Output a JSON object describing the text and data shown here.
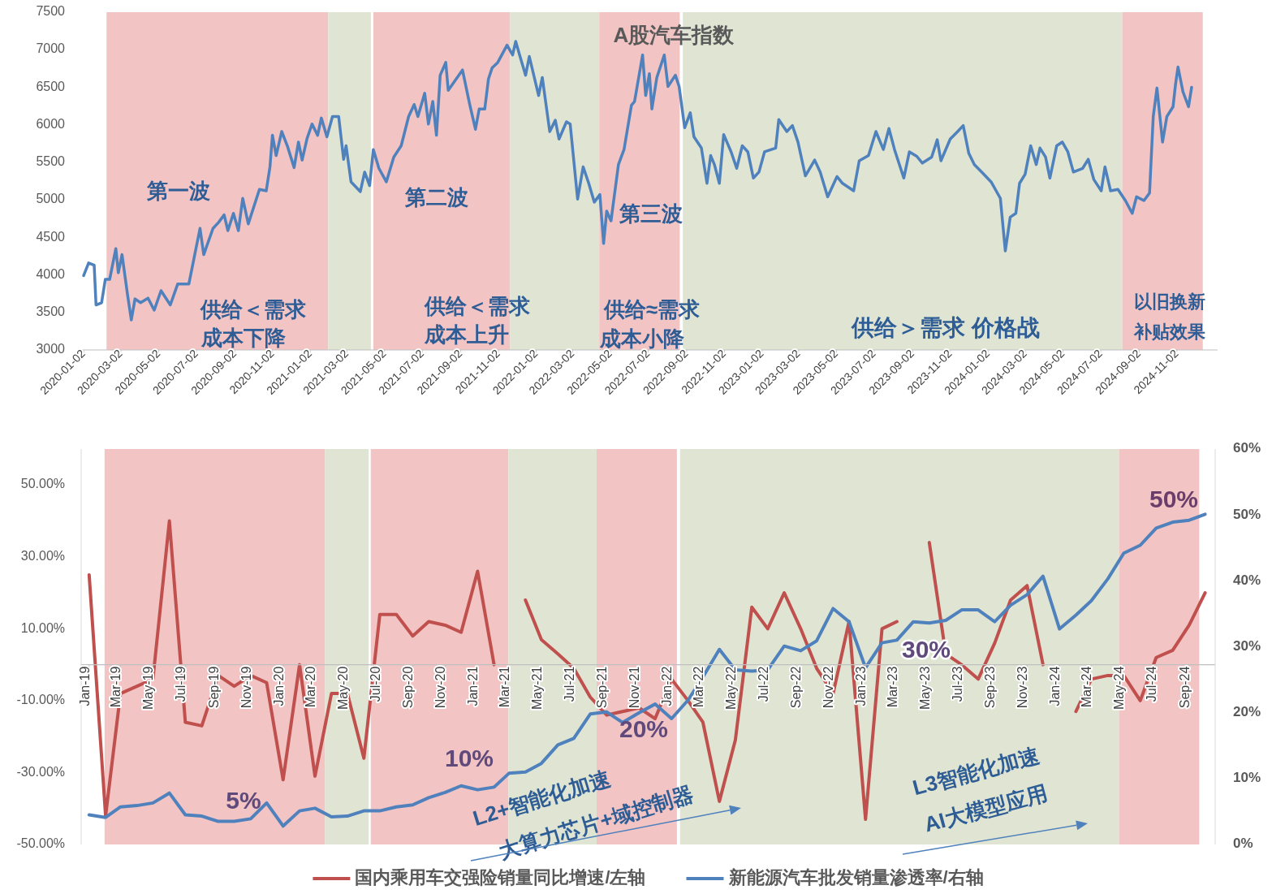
{
  "chart_data": [
    {
      "type": "line",
      "title": "A股汽车指数",
      "x": [
        "2020-01-02",
        "2020-01-10",
        "2020-01-19",
        "2020-01-22",
        "2020-01-31",
        "2020-02-06",
        "2020-02-13",
        "2020-02-23",
        "2020-02-27",
        "2020-03-04",
        "2020-03-13",
        "2020-03-19",
        "2020-03-25",
        "2020-04-03",
        "2020-04-15",
        "2020-04-25",
        "2020-05-06",
        "2020-05-21",
        "2020-06-02",
        "2020-06-20",
        "2020-06-29",
        "2020-07-08",
        "2020-07-14",
        "2020-07-29",
        "2020-08-07",
        "2020-08-16",
        "2020-08-22",
        "2020-08-31",
        "2020-09-08",
        "2020-09-15",
        "2020-09-24",
        "2020-10-12",
        "2020-10-23",
        "2020-10-29",
        "2020-11-02",
        "2020-11-08",
        "2020-11-17",
        "2020-11-26",
        "2020-12-07",
        "2020-12-14",
        "2020-12-20",
        "2020-12-28",
        "2021-01-05",
        "2021-01-14",
        "2021-01-20",
        "2021-01-29",
        "2021-02-07",
        "2021-02-17",
        "2021-02-25",
        "2021-03-01",
        "2021-03-09",
        "2021-03-24",
        "2021-03-31",
        "2021-04-08",
        "2021-04-14",
        "2021-04-23",
        "2021-05-05",
        "2021-05-17",
        "2021-05-29",
        "2021-06-10",
        "2021-06-19",
        "2021-06-25",
        "2021-07-06",
        "2021-07-12",
        "2021-07-19",
        "2021-07-25",
        "2021-07-31",
        "2021-08-09",
        "2021-08-13",
        "2021-09-05",
        "2021-09-17",
        "2021-09-26",
        "2021-10-02",
        "2021-10-11",
        "2021-10-17",
        "2021-10-23",
        "2021-11-01",
        "2021-11-16",
        "2021-11-25",
        "2021-11-30",
        "2021-12-07",
        "2021-12-16",
        "2021-12-22",
        "2022-01-06",
        "2022-01-12",
        "2022-01-24",
        "2022-02-02",
        "2022-02-08",
        "2022-02-20",
        "2022-02-26",
        "2022-03-10",
        "2022-03-19",
        "2022-03-28",
        "2022-04-06",
        "2022-04-15",
        "2022-04-21",
        "2022-04-26",
        "2022-05-03",
        "2022-05-15",
        "2022-05-24",
        "2022-06-05",
        "2022-06-10",
        "2022-06-23",
        "2022-06-28",
        "2022-07-04",
        "2022-07-08",
        "2022-07-16",
        "2022-07-28",
        "2022-08-03",
        "2022-08-15",
        "2022-08-21",
        "2022-08-30",
        "2022-09-08",
        "2022-09-14",
        "2022-09-26",
        "2022-10-05",
        "2022-10-11",
        "2022-10-17",
        "2022-10-25",
        "2022-11-01",
        "2022-11-13",
        "2022-11-22",
        "2022-12-01",
        "2022-12-10",
        "2022-12-19",
        "2022-12-28",
        "2023-01-06",
        "2023-01-24",
        "2023-01-29",
        "2023-02-11",
        "2023-02-20",
        "2023-03-01",
        "2023-03-13",
        "2023-03-28",
        "2023-04-06",
        "2023-04-18",
        "2023-05-03",
        "2023-05-12",
        "2023-05-30",
        "2023-06-08",
        "2023-06-23",
        "2023-07-05",
        "2023-07-17",
        "2023-07-26",
        "2023-08-04",
        "2023-08-19",
        "2023-08-28",
        "2023-09-09",
        "2023-09-18",
        "2023-10-03",
        "2023-10-12",
        "2023-10-18",
        "2023-11-02",
        "2023-11-14",
        "2023-11-23",
        "2023-12-02",
        "2023-12-11",
        "2023-12-23",
        "2024-01-07",
        "2024-01-22",
        "2024-01-30",
        "2024-02-07",
        "2024-02-16",
        "2024-02-22",
        "2024-03-02",
        "2024-03-11",
        "2024-03-20",
        "2024-03-26",
        "2024-04-04",
        "2024-04-11",
        "2024-04-22",
        "2024-05-01",
        "2024-05-10",
        "2024-05-19",
        "2024-06-03",
        "2024-06-12",
        "2024-06-21",
        "2024-07-03",
        "2024-07-09",
        "2024-07-18",
        "2024-07-30",
        "2024-08-11",
        "2024-08-22",
        "2024-08-29",
        "2024-09-10",
        "2024-09-19",
        "2024-09-25",
        "2024-10-01",
        "2024-10-10",
        "2024-10-17",
        "2024-10-27",
        "2024-10-31",
        "2024-11-04",
        "2024-11-12",
        "2024-11-21",
        "2024-11-26"
      ],
      "series": [
        {
          "color": "#4f81bd",
          "values": [
            3990,
            4160,
            4130,
            3600,
            3630,
            3940,
            3940,
            4350,
            4030,
            4270,
            3730,
            3400,
            3680,
            3630,
            3690,
            3530,
            3790,
            3600,
            3880,
            3880,
            4250,
            4620,
            4270,
            4620,
            4700,
            4800,
            4590,
            4820,
            4590,
            5020,
            4680,
            5140,
            5120,
            5440,
            5860,
            5590,
            5910,
            5720,
            5430,
            5770,
            5530,
            5820,
            6010,
            5860,
            6090,
            5840,
            6110,
            6110,
            5540,
            5720,
            5240,
            5110,
            5370,
            5190,
            5670,
            5420,
            5240,
            5570,
            5720,
            6110,
            6270,
            6110,
            6420,
            6010,
            6310,
            5860,
            6660,
            6830,
            6460,
            6730,
            6260,
            5940,
            6210,
            6210,
            6610,
            6760,
            6830,
            7060,
            6930,
            7110,
            6910,
            6660,
            6910,
            6390,
            6630,
            5910,
            6060,
            5810,
            6040,
            6010,
            5010,
            5440,
            5220,
            4970,
            5070,
            4420,
            4850,
            4720,
            5470,
            5670,
            6260,
            6310,
            6930,
            6390,
            6680,
            6210,
            6630,
            6930,
            6510,
            6660,
            6510,
            5960,
            6160,
            5840,
            5690,
            5220,
            5590,
            5470,
            5220,
            5870,
            5640,
            5420,
            5720,
            5640,
            5290,
            5370,
            5640,
            5690,
            6070,
            5910,
            5990,
            5770,
            5320,
            5530,
            5370,
            5040,
            5310,
            5220,
            5120,
            5520,
            5590,
            5910,
            5670,
            5950,
            5670,
            5290,
            5640,
            5580,
            5490,
            5570,
            5800,
            5520,
            5810,
            5910,
            5990,
            5620,
            5470,
            5370,
            5240,
            5020,
            4320,
            4770,
            4820,
            5220,
            5340,
            5720,
            5470,
            5690,
            5570,
            5290,
            5720,
            5770,
            5640,
            5370,
            5420,
            5540,
            5270,
            5120,
            5440,
            5120,
            5140,
            4990,
            4820,
            5040,
            4990,
            5090,
            6110,
            6490,
            5770,
            6110,
            6240,
            6540,
            6770,
            6440,
            6240,
            6500
          ]
        }
      ],
      "xlim": [
        "2019-12-29",
        "2025-01-07"
      ],
      "xticks": [
        "2020-01-02",
        "2020-03-02",
        "2020-05-02",
        "2020-07-02",
        "2020-09-02",
        "2020-11-02",
        "2021-01-02",
        "2021-03-02",
        "2021-05-02",
        "2021-07-02",
        "2021-09-02",
        "2021-11-02",
        "2022-01-02",
        "2022-03-02",
        "2022-05-02",
        "2022-07-02",
        "2022-09-02",
        "2022-11-02",
        "2023-01-02",
        "2023-03-02",
        "2023-05-02",
        "2023-07-02",
        "2023-09-02",
        "2023-11-02",
        "2024-01-02",
        "2024-03-02",
        "2024-05-02",
        "2024-07-02",
        "2024-09-02",
        "2024-11-02"
      ],
      "ylim": [
        3000,
        7500
      ],
      "yticks": [
        3000,
        3500,
        4000,
        4500,
        5000,
        5500,
        6000,
        6500,
        7000,
        7500
      ],
      "bands": [
        {
          "axis": "x",
          "from": "2020-02-08",
          "to": "2021-01-31",
          "color": "#f2c4c4"
        },
        {
          "axis": "x",
          "from": "2021-01-31",
          "to": "2021-04-10",
          "color": "#e0e5d3"
        },
        {
          "axis": "x",
          "from": "2021-04-14",
          "to": "2021-11-21",
          "color": "#f2c4c4"
        },
        {
          "axis": "x",
          "from": "2021-11-21",
          "to": "2022-04-14",
          "color": "#e0e5d3"
        },
        {
          "axis": "x",
          "from": "2022-04-14",
          "to": "2022-08-22",
          "color": "#f2c4c4"
        },
        {
          "axis": "x",
          "from": "2022-08-27",
          "to": "2024-08-06",
          "color": "#e0e5d3"
        },
        {
          "axis": "x",
          "from": "2024-08-06",
          "to": "2024-12-14",
          "color": "#f2c4c4"
        }
      ],
      "annotations": [
        "第一波",
        "第二波",
        "第三波",
        "供给＜需求",
        "成本下降",
        "供给＜需求",
        "成本上升",
        "供给≈需求",
        "成本小降",
        "供给＞需求   价格战",
        "以旧换新",
        "补贴效果"
      ]
    },
    {
      "type": "line",
      "x": [
        "2019-01",
        "2019-02",
        "2019-03",
        "2019-04",
        "2019-05",
        "2019-06",
        "2019-07",
        "2019-08",
        "2019-09",
        "2019-10",
        "2019-11",
        "2019-12",
        "2020-01",
        "2020-02",
        "2020-03",
        "2020-04",
        "2020-05",
        "2020-06",
        "2020-07",
        "2020-08",
        "2020-09",
        "2020-10",
        "2020-11",
        "2020-12",
        "2021-01",
        "2021-02",
        "2021-03",
        "2021-04",
        "2021-05",
        "2021-06",
        "2021-07",
        "2021-08",
        "2021-09",
        "2021-10",
        "2021-11",
        "2021-12",
        "2022-01",
        "2022-02",
        "2022-03",
        "2022-04",
        "2022-05",
        "2022-06",
        "2022-07",
        "2022-08",
        "2022-09",
        "2022-10",
        "2022-11",
        "2022-12",
        "2023-01",
        "2023-02",
        "2023-03",
        "2023-04",
        "2023-05",
        "2023-06",
        "2023-07",
        "2023-08",
        "2023-09",
        "2023-10",
        "2023-11",
        "2023-12",
        "2024-01",
        "2024-02",
        "2024-03",
        "2024-04",
        "2024-05",
        "2024-06",
        "2024-07",
        "2024-08",
        "2024-09",
        "2024-10"
      ],
      "series": [
        {
          "name": "国内乘用车交强险销量同比增速/左轴",
          "color": "#c0504d",
          "values": [
            25,
            -42,
            -8,
            -6,
            -4,
            40,
            -16,
            -17,
            -3,
            -6,
            -3,
            -5,
            -32,
            0,
            -31,
            -8,
            -8,
            -26,
            14,
            14,
            8,
            12,
            11,
            9,
            26,
            0,
            null,
            18,
            7,
            3,
            -1,
            -9,
            -14,
            -13,
            -12,
            -15,
            -4,
            -10,
            -16,
            -38,
            -21,
            16,
            10,
            20,
            10,
            -1,
            -8,
            12,
            -43,
            10,
            12,
            null,
            34,
            3,
            0,
            -4,
            6,
            18,
            22,
            0,
            null,
            -13,
            -4,
            -3,
            -3,
            -10,
            2,
            4,
            11,
            20
          ]
        },
        {
          "name": "新能源汽车批发销量渗透率/右轴",
          "color": "#4f81bd",
          "axis": "y2",
          "values": [
            4.5,
            4.1,
            5.7,
            5.9,
            6.3,
            7.8,
            4.5,
            4.3,
            3.5,
            3.5,
            3.9,
            6.3,
            2.8,
            5.1,
            5.5,
            4.2,
            4.3,
            5.1,
            5.1,
            5.7,
            6.0,
            7.1,
            7.9,
            8.9,
            8.3,
            8.7,
            10.8,
            11.0,
            12.3,
            15.1,
            16.1,
            19.8,
            20.1,
            18.5,
            20.0,
            21.3,
            19.1,
            21.9,
            25.4,
            29.6,
            26.5,
            26.3,
            26.5,
            30.1,
            29.4,
            30.9,
            35.8,
            33.8,
            26.8,
            30.6,
            31.0,
            33.8,
            33.6,
            34.0,
            35.6,
            35.6,
            33.8,
            36.3,
            37.9,
            40.7,
            32.7,
            34.8,
            37.0,
            40.3,
            44.2,
            45.4,
            48.0,
            48.9,
            49.2,
            50.1
          ]
        }
      ],
      "xlim": [
        "2018-12-17",
        "2024-10-20"
      ],
      "xticks": [
        {
          "value": "2019-01",
          "label": "Jan-19"
        },
        {
          "value": "2019-03",
          "label": "Mar-19"
        },
        {
          "value": "2019-05",
          "label": "May-19"
        },
        {
          "value": "2019-07",
          "label": "Jul-19"
        },
        {
          "value": "2019-09",
          "label": "Sep-19"
        },
        {
          "value": "2019-11",
          "label": "Nov-19"
        },
        {
          "value": "2020-01",
          "label": "Jan-20"
        },
        {
          "value": "2020-03",
          "label": "Mar-20"
        },
        {
          "value": "2020-05",
          "label": "May-20"
        },
        {
          "value": "2020-07",
          "label": "Jul-20"
        },
        {
          "value": "2020-09",
          "label": "Sep-20"
        },
        {
          "value": "2020-11",
          "label": "Nov-20"
        },
        {
          "value": "2021-01",
          "label": "Jan-21"
        },
        {
          "value": "2021-03",
          "label": "Mar-21"
        },
        {
          "value": "2021-05",
          "label": "May-21"
        },
        {
          "value": "2021-07",
          "label": "Jul-21"
        },
        {
          "value": "2021-09",
          "label": "Sep-21"
        },
        {
          "value": "2021-11",
          "label": "Nov-21"
        },
        {
          "value": "2022-01",
          "label": "Jan-22"
        },
        {
          "value": "2022-03",
          "label": "Mar-22"
        },
        {
          "value": "2022-05",
          "label": "May-22"
        },
        {
          "value": "2022-07",
          "label": "Jul-22"
        },
        {
          "value": "2022-09",
          "label": "Sep-22"
        },
        {
          "value": "2022-11",
          "label": "Nov-22"
        },
        {
          "value": "2023-01",
          "label": "Jan-23"
        },
        {
          "value": "2023-03",
          "label": "Mar-23"
        },
        {
          "value": "2023-05",
          "label": "May-23"
        },
        {
          "value": "2023-07",
          "label": "Jul-23"
        },
        {
          "value": "2023-09",
          "label": "Sep-23"
        },
        {
          "value": "2023-11",
          "label": "Nov-23"
        },
        {
          "value": "2024-01",
          "label": "Jan-24"
        },
        {
          "value": "2024-03",
          "label": "Mar-24"
        },
        {
          "value": "2024-05",
          "label": "May-24"
        },
        {
          "value": "2024-07",
          "label": "Jul-24"
        },
        {
          "value": "2024-09",
          "label": "Sep-24"
        }
      ],
      "ylim": [
        -50,
        60
      ],
      "yticks": [
        {
          "value": -50,
          "label": "-50.00%"
        },
        {
          "value": -30,
          "label": "-30.00%"
        },
        {
          "value": -10,
          "label": "-10.00%"
        },
        {
          "value": 10,
          "label": "10.00%"
        },
        {
          "value": 30,
          "label": "30.00%"
        },
        {
          "value": 50,
          "label": "50.00%"
        }
      ],
      "y2lim": [
        0,
        60
      ],
      "y2ticks": [
        {
          "value": 0,
          "label": "0%"
        },
        {
          "value": 10,
          "label": "10%"
        },
        {
          "value": 20,
          "label": "20%"
        },
        {
          "value": 30,
          "label": "30%"
        },
        {
          "value": 40,
          "label": "40%"
        },
        {
          "value": 50,
          "label": "50%"
        },
        {
          "value": 60,
          "label": "60%"
        }
      ],
      "bands": [
        {
          "axis": "x",
          "from": "2019-01-30",
          "to": "2020-03-20",
          "color": "#f2c4c4"
        },
        {
          "axis": "x",
          "from": "2020-03-20",
          "to": "2020-06-10",
          "color": "#e0e5d3"
        },
        {
          "axis": "x",
          "from": "2020-06-14",
          "to": "2021-02-28",
          "color": "#f2c4c4"
        },
        {
          "axis": "x",
          "from": "2021-02-28",
          "to": "2021-08-13",
          "color": "#e0e5d3"
        },
        {
          "axis": "x",
          "from": "2021-08-13",
          "to": "2022-01-11",
          "color": "#f2c4c4"
        },
        {
          "axis": "x",
          "from": "2022-01-17",
          "to": "2024-04-22",
          "color": "#e0e5d3"
        },
        {
          "axis": "x",
          "from": "2024-04-22",
          "to": "2024-09-20",
          "color": "#f2c4c4"
        }
      ],
      "annotations": [
        "5%",
        "10%",
        "20%",
        "30%",
        "50%",
        "L2+智能化加速",
        "大算力芯片+域控制器",
        "L3智能化加速",
        "AI大模型应用"
      ],
      "legend": "bottom"
    }
  ]
}
